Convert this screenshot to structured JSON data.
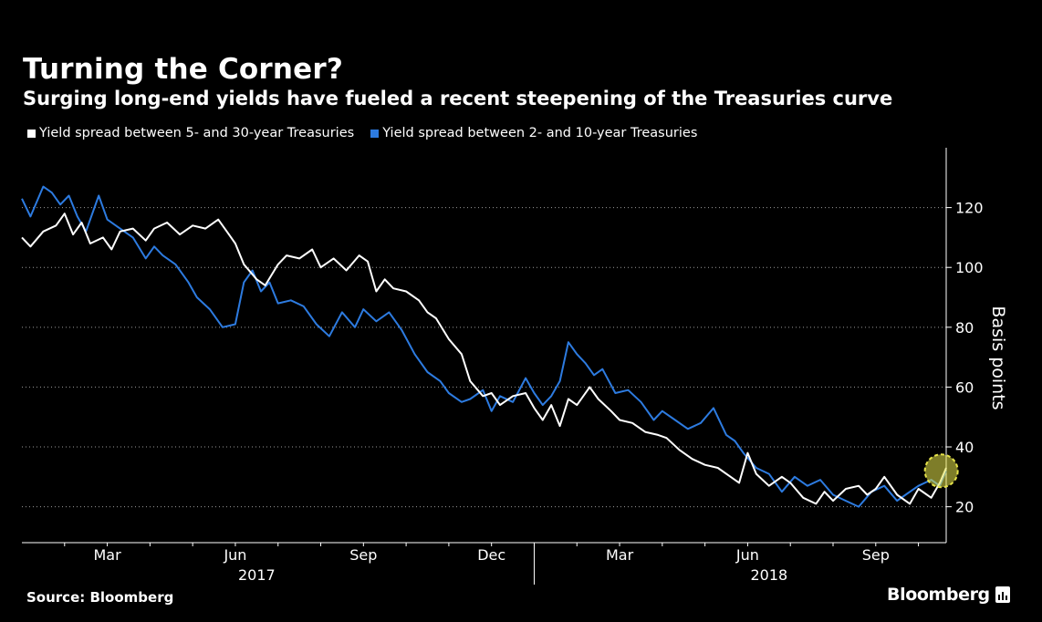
{
  "header": {
    "title": "Turning the Corner?",
    "subtitle": "Surging long-end yields have fueled a recent steepening of the Treasuries curve"
  },
  "footer": {
    "source": "Source: Bloomberg",
    "brand": "Bloomberg"
  },
  "colors": {
    "background": "#000000",
    "series_5_30": "#ffffff",
    "series_2_10": "#2d7be0",
    "highlight": "#e6e34a"
  },
  "chart_data": {
    "type": "line",
    "title": "Turning the Corner?",
    "subtitle": "Surging long-end yields have fueled a recent steepening of the Treasuries curve",
    "ylabel": "Basis points",
    "ylim": [
      8,
      140
    ],
    "yticks": [
      20,
      40,
      60,
      80,
      100,
      120
    ],
    "y_axis_side": "right",
    "grid": "horizontal dotted",
    "x_ticks": [
      "Mar",
      "Jun",
      "Sep",
      "Dec",
      "Mar",
      "Jun",
      "Sep"
    ],
    "x_tick_month_index": [
      2,
      5,
      8,
      11,
      14,
      17,
      20
    ],
    "x_year_labels": [
      "2017",
      "2018"
    ],
    "x_year_month_index": [
      5.5,
      17.5
    ],
    "x_range_months": [
      0.0,
      21.65
    ],
    "x_unit": "months since 2017-01-01",
    "legend_position": "top",
    "highlight_annotation": {
      "x": 21.6,
      "y": 32,
      "description": "recent steepening"
    },
    "series": [
      {
        "name": "Yield spread between 5- and 30-year Treasuries",
        "color": "#ffffff",
        "x": [
          0.0,
          0.2,
          0.5,
          0.8,
          1.0,
          1.2,
          1.4,
          1.6,
          1.9,
          2.1,
          2.3,
          2.6,
          2.9,
          3.1,
          3.4,
          3.7,
          4.0,
          4.3,
          4.6,
          4.8,
          5.0,
          5.2,
          5.5,
          5.7,
          6.0,
          6.2,
          6.5,
          6.8,
          7.0,
          7.3,
          7.6,
          7.9,
          8.1,
          8.3,
          8.5,
          8.7,
          9.0,
          9.3,
          9.5,
          9.7,
          10.0,
          10.3,
          10.5,
          10.8,
          11.0,
          11.2,
          11.5,
          11.8,
          12.0,
          12.2,
          12.4,
          12.6,
          12.8,
          13.0,
          13.3,
          13.5,
          13.8,
          14.0,
          14.3,
          14.6,
          14.9,
          15.1,
          15.4,
          15.7,
          16.0,
          16.3,
          16.6,
          16.8,
          17.0,
          17.2,
          17.5,
          17.8,
          18.0,
          18.3,
          18.6,
          18.8,
          19.0,
          19.3,
          19.6,
          19.8,
          20.0,
          20.2,
          20.5,
          20.8,
          21.0,
          21.3,
          21.5,
          21.65
        ],
        "values": [
          110,
          107,
          112,
          114,
          118,
          111,
          115,
          108,
          110,
          106,
          112,
          113,
          109,
          113,
          115,
          111,
          114,
          113,
          116,
          112,
          108,
          101,
          96,
          94,
          101,
          104,
          103,
          106,
          100,
          103,
          99,
          104,
          102,
          92,
          96,
          93,
          92,
          89,
          85,
          83,
          76,
          71,
          62,
          57,
          58,
          54,
          57,
          58,
          53,
          49,
          54,
          47,
          56,
          54,
          60,
          56,
          52,
          49,
          48,
          45,
          44,
          43,
          39,
          36,
          34,
          33,
          30,
          28,
          38,
          31,
          27,
          30,
          28,
          23,
          21,
          25,
          22,
          26,
          27,
          24,
          26,
          30,
          24,
          21,
          26,
          23,
          28,
          33
        ]
      },
      {
        "name": "Yield spread between 2- and 10-year Treasuries",
        "color": "#2d7be0",
        "x": [
          0.0,
          0.2,
          0.5,
          0.7,
          0.9,
          1.1,
          1.3,
          1.5,
          1.8,
          2.0,
          2.3,
          2.6,
          2.9,
          3.1,
          3.3,
          3.6,
          3.9,
          4.1,
          4.4,
          4.7,
          5.0,
          5.2,
          5.4,
          5.6,
          5.8,
          6.0,
          6.3,
          6.6,
          6.9,
          7.2,
          7.5,
          7.8,
          8.0,
          8.3,
          8.6,
          8.9,
          9.2,
          9.5,
          9.8,
          10.0,
          10.3,
          10.5,
          10.8,
          11.0,
          11.2,
          11.5,
          11.8,
          12.0,
          12.2,
          12.4,
          12.6,
          12.8,
          13.0,
          13.2,
          13.4,
          13.6,
          13.9,
          14.2,
          14.5,
          14.8,
          15.0,
          15.3,
          15.6,
          15.9,
          16.2,
          16.5,
          16.7,
          16.9,
          17.2,
          17.5,
          17.8,
          18.1,
          18.4,
          18.7,
          19.0,
          19.3,
          19.6,
          19.9,
          20.2,
          20.5,
          20.7,
          21.0,
          21.3,
          21.5,
          21.65
        ],
        "values": [
          123,
          117,
          127,
          125,
          121,
          124,
          117,
          112,
          124,
          116,
          113,
          110,
          103,
          107,
          104,
          101,
          95,
          90,
          86,
          80,
          81,
          95,
          99,
          92,
          95,
          88,
          89,
          87,
          81,
          77,
          85,
          80,
          86,
          82,
          85,
          79,
          71,
          65,
          62,
          58,
          55,
          56,
          59,
          52,
          57,
          55,
          63,
          58,
          54,
          57,
          62,
          75,
          71,
          68,
          64,
          66,
          58,
          59,
          55,
          49,
          52,
          49,
          46,
          48,
          53,
          44,
          42,
          38,
          33,
          31,
          25,
          30,
          27,
          29,
          24,
          22,
          20,
          25,
          27,
          22,
          24,
          27,
          29,
          27,
          32
        ]
      }
    ]
  }
}
